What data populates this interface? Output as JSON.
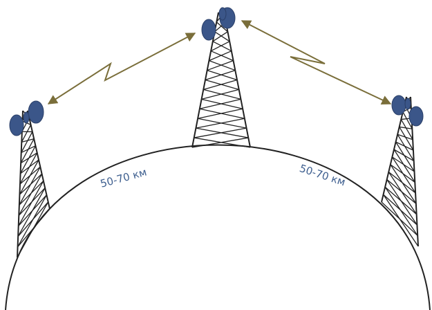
{
  "labels": {
    "left_distance": "50-70 км",
    "right_distance": "50-70 км"
  }
}
